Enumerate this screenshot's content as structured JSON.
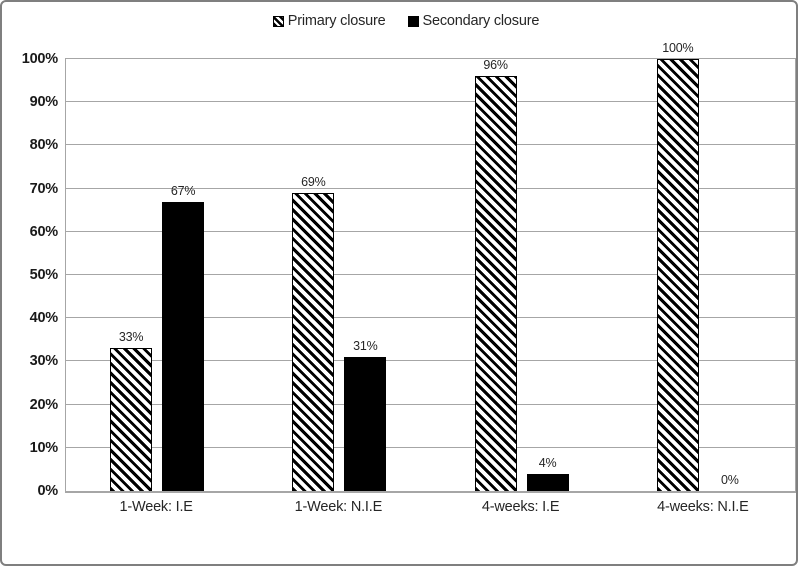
{
  "chart_data": {
    "type": "bar",
    "title": "",
    "categories": [
      "1-Week: I.E",
      "1-Week: N.I.E",
      "4-weeks: I.E",
      "4-weeks: N.I.E"
    ],
    "series": [
      {
        "name": "Primary closure",
        "style": "diagonal-hatch",
        "values": [
          33,
          69,
          96,
          100
        ],
        "data_labels": [
          "33%",
          "69%",
          "96%",
          "100%"
        ]
      },
      {
        "name": "Secondary closure",
        "style": "solid-black",
        "values": [
          67,
          31,
          4,
          0
        ],
        "data_labels": [
          "67%",
          "31%",
          "4%",
          "0%"
        ]
      }
    ],
    "y_axis": {
      "min": 0,
      "max": 100,
      "step": 10,
      "tick_labels": [
        "0%",
        "10%",
        "20%",
        "30%",
        "40%",
        "50%",
        "60%",
        "70%",
        "80%",
        "90%",
        "100%"
      ]
    },
    "grid": true,
    "legend_position": "top"
  },
  "colors": {
    "bar-fill": "#000000",
    "gridline": "#a6a6a6",
    "plot-border": "#a6a6a6",
    "outer-border": "#7f7f7f",
    "background": "#ffffff",
    "text": "#262626"
  }
}
